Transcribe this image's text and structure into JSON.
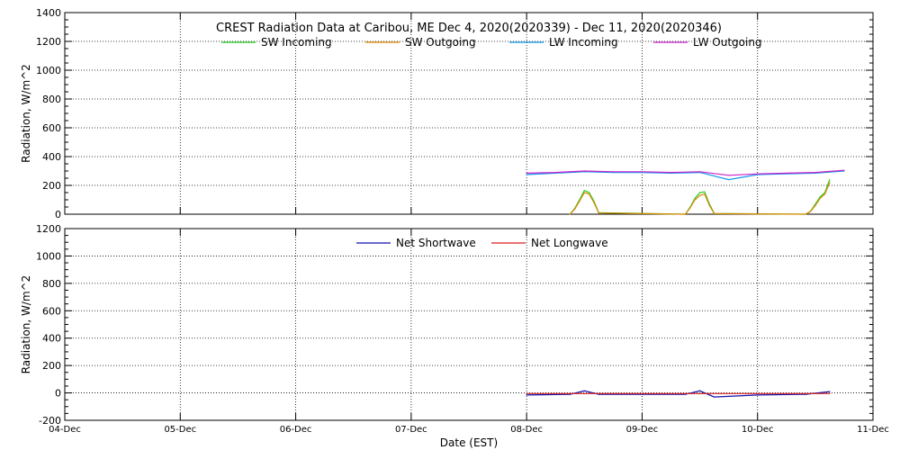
{
  "chart_data": [
    {
      "type": "line",
      "title": "CREST Radiation Data at Caribou, ME   Dec  4, 2020(2020339) - Dec 11, 2020(2020346)",
      "xlabel": "",
      "ylabel": "Radiation, W/m^2",
      "xlim": [
        "2020-12-04",
        "2020-12-11"
      ],
      "ylim": [
        0,
        1400
      ],
      "yticks": [
        0,
        200,
        400,
        600,
        800,
        1000,
        1200,
        1400
      ],
      "grid": true,
      "legend_position": "top-center",
      "series": [
        {
          "name": "SW Incoming",
          "color": "#22cc22",
          "x": [
            "2020-12-08 09:00",
            "2020-12-08 10:00",
            "2020-12-08 11:00",
            "2020-12-08 12:00",
            "2020-12-08 13:00",
            "2020-12-08 14:00",
            "2020-12-08 15:00",
            "2020-12-09 09:00",
            "2020-12-09 10:00",
            "2020-12-09 11:00",
            "2020-12-09 12:00",
            "2020-12-09 13:00",
            "2020-12-09 14:00",
            "2020-12-09 15:00",
            "2020-12-10 10:00",
            "2020-12-10 11:00",
            "2020-12-10 12:00",
            "2020-12-10 13:00",
            "2020-12-10 14:00",
            "2020-12-10 15:00"
          ],
          "y": [
            0,
            40,
            100,
            165,
            150,
            90,
            10,
            0,
            50,
            110,
            150,
            155,
            70,
            5,
            0,
            20,
            70,
            120,
            150,
            240
          ]
        },
        {
          "name": "SW Outgoing",
          "color": "#dd8800",
          "x": [
            "2020-12-08 09:00",
            "2020-12-08 10:00",
            "2020-12-08 11:00",
            "2020-12-08 12:00",
            "2020-12-08 13:00",
            "2020-12-08 14:00",
            "2020-12-08 15:00",
            "2020-12-09 09:00",
            "2020-12-09 10:00",
            "2020-12-09 11:00",
            "2020-12-09 12:00",
            "2020-12-09 13:00",
            "2020-12-09 14:00",
            "2020-12-09 15:00",
            "2020-12-10 10:00",
            "2020-12-10 11:00",
            "2020-12-10 12:00",
            "2020-12-10 13:00",
            "2020-12-10 14:00",
            "2020-12-10 15:00"
          ],
          "y": [
            0,
            35,
            90,
            150,
            140,
            80,
            8,
            0,
            45,
            100,
            130,
            140,
            60,
            4,
            0,
            18,
            60,
            110,
            140,
            220
          ]
        },
        {
          "name": "LW Incoming",
          "color": "#1199ee",
          "x": [
            "2020-12-08 00:00",
            "2020-12-08 06:00",
            "2020-12-08 12:00",
            "2020-12-08 18:00",
            "2020-12-09 00:00",
            "2020-12-09 06:00",
            "2020-12-09 12:00",
            "2020-12-09 18:00",
            "2020-12-10 00:00",
            "2020-12-10 06:00",
            "2020-12-10 12:00",
            "2020-12-10 18:00"
          ],
          "y": [
            275,
            285,
            295,
            290,
            290,
            285,
            290,
            240,
            275,
            280,
            285,
            300
          ]
        },
        {
          "name": "LW Outgoing",
          "color": "#cc22cc",
          "x": [
            "2020-12-08 00:00",
            "2020-12-08 06:00",
            "2020-12-08 12:00",
            "2020-12-08 18:00",
            "2020-12-09 00:00",
            "2020-12-09 06:00",
            "2020-12-09 12:00",
            "2020-12-09 18:00",
            "2020-12-10 00:00",
            "2020-12-10 06:00",
            "2020-12-10 12:00",
            "2020-12-10 18:00"
          ],
          "y": [
            285,
            290,
            300,
            295,
            295,
            290,
            295,
            270,
            280,
            285,
            290,
            305
          ]
        }
      ]
    },
    {
      "type": "line",
      "title": "",
      "xlabel": "Date (EST)",
      "ylabel": "Radiation, W/m^2",
      "xlim": [
        "2020-12-04",
        "2020-12-11"
      ],
      "ylim": [
        -200,
        1200
      ],
      "yticks": [
        -200,
        0,
        200,
        400,
        600,
        800,
        1000,
        1200
      ],
      "xticks": [
        "04-Dec",
        "05-Dec",
        "06-Dec",
        "07-Dec",
        "08-Dec",
        "09-Dec",
        "10-Dec",
        "11-Dec"
      ],
      "grid": true,
      "legend_position": "top-center",
      "series": [
        {
          "name": "Net Shortwave",
          "color": "#1111aa",
          "x": [
            "2020-12-08 00:00",
            "2020-12-08 09:00",
            "2020-12-08 12:00",
            "2020-12-08 15:00",
            "2020-12-09 00:00",
            "2020-12-09 09:00",
            "2020-12-09 12:00",
            "2020-12-09 15:00",
            "2020-12-10 00:00",
            "2020-12-10 10:00",
            "2020-12-10 15:00"
          ],
          "y": [
            -15,
            -10,
            15,
            -10,
            -10,
            -10,
            15,
            -30,
            -15,
            -10,
            10
          ]
        },
        {
          "name": "Net Longwave",
          "color": "#dd2222",
          "x": [
            "2020-12-08 00:00",
            "2020-12-08 12:00",
            "2020-12-09 00:00",
            "2020-12-09 12:00",
            "2020-12-10 00:00",
            "2020-12-10 12:00",
            "2020-12-10 15:00"
          ],
          "y": [
            -5,
            -5,
            -5,
            -5,
            -5,
            -5,
            -5
          ]
        }
      ]
    }
  ]
}
